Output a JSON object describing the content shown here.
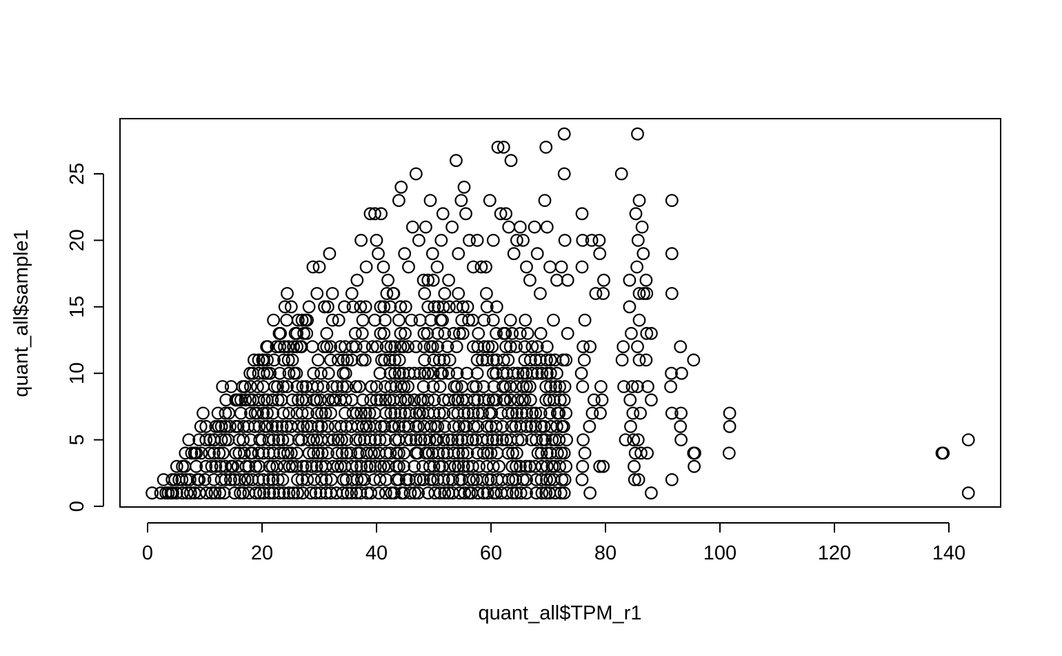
{
  "chart_data": {
    "type": "scatter",
    "title": "",
    "xlabel": "quant_all$TPM_r1",
    "ylabel": "quant_all$sample1",
    "xlim": [
      -4,
      150
    ],
    "ylim": [
      0,
      28
    ],
    "xticks": [
      0,
      20,
      40,
      60,
      80,
      100,
      120,
      140
    ],
    "yticks": [
      0,
      5,
      10,
      15,
      20,
      25
    ],
    "grid": false,
    "legend": "none",
    "point_color": "#000000",
    "series": [
      {
        "points": [
          [
            0.8,
            1
          ],
          [
            2.3,
            1
          ],
          [
            2.8,
            2
          ],
          [
            3.6,
            1
          ],
          [
            4.3,
            2
          ],
          [
            4.1,
            1
          ],
          [
            5.1,
            3
          ],
          [
            5.5,
            2
          ],
          [
            6.1,
            3
          ],
          [
            6.6,
            4
          ],
          [
            7.2,
            5
          ],
          [
            7.7,
            4
          ],
          [
            8.2,
            4
          ],
          [
            9.0,
            5
          ],
          [
            9.3,
            6
          ],
          [
            9.7,
            7
          ],
          [
            10.2,
            6
          ],
          [
            10.9,
            5
          ],
          [
            11.6,
            5
          ],
          [
            12.3,
            7
          ],
          [
            12.9,
            6
          ],
          [
            13.1,
            9
          ],
          [
            13.7,
            8
          ],
          [
            14.6,
            9
          ],
          [
            15.5,
            8
          ],
          [
            16.3,
            8
          ],
          [
            17.0,
            9
          ],
          [
            17.9,
            10
          ],
          [
            18.6,
            11
          ],
          [
            19.4,
            11
          ],
          [
            20.1,
            11
          ],
          [
            20.8,
            12
          ],
          [
            21.4,
            10
          ],
          [
            22.0,
            14
          ],
          [
            22.5,
            12
          ],
          [
            23.2,
            13
          ],
          [
            24.0,
            15
          ],
          [
            24.4,
            16
          ],
          [
            25.1,
            15
          ],
          [
            25.8,
            13
          ],
          [
            26.7,
            12
          ],
          [
            27.6,
            14
          ],
          [
            28.2,
            15
          ],
          [
            28.9,
            18
          ],
          [
            29.6,
            16
          ],
          [
            30.0,
            18
          ],
          [
            30.9,
            15
          ],
          [
            31.8,
            19
          ],
          [
            32.3,
            16
          ],
          [
            33.4,
            14
          ],
          [
            34.4,
            15
          ],
          [
            35.7,
            16
          ],
          [
            36.6,
            17
          ],
          [
            37.3,
            20
          ],
          [
            38.2,
            18
          ],
          [
            38.9,
            22
          ],
          [
            39.7,
            22
          ],
          [
            40.0,
            20
          ],
          [
            40.3,
            19
          ],
          [
            40.8,
            22
          ],
          [
            41.2,
            18
          ],
          [
            42.0,
            17
          ],
          [
            42.9,
            16
          ],
          [
            43.9,
            23
          ],
          [
            44.3,
            24
          ],
          [
            44.9,
            19
          ],
          [
            45.6,
            18
          ],
          [
            46.3,
            21
          ],
          [
            46.9,
            25
          ],
          [
            47.4,
            20
          ],
          [
            48.2,
            17
          ],
          [
            48.6,
            21
          ],
          [
            49.4,
            23
          ],
          [
            49.8,
            19
          ],
          [
            50.6,
            18
          ],
          [
            51.6,
            22
          ],
          [
            51.3,
            20
          ],
          [
            52.6,
            17
          ],
          [
            53.2,
            21
          ],
          [
            53.9,
            26
          ],
          [
            54.3,
            19
          ],
          [
            54.8,
            23
          ],
          [
            55.3,
            24
          ],
          [
            55.6,
            22
          ],
          [
            56.2,
            20
          ],
          [
            56.9,
            18
          ],
          [
            57.6,
            20
          ],
          [
            58.3,
            18
          ],
          [
            59.1,
            18
          ],
          [
            59.8,
            23
          ],
          [
            60.4,
            20
          ],
          [
            61.2,
            27
          ],
          [
            61.7,
            22
          ],
          [
            62.2,
            27
          ],
          [
            62.6,
            22
          ],
          [
            63.1,
            21
          ],
          [
            63.5,
            26
          ],
          [
            64.0,
            19
          ],
          [
            64.5,
            20
          ],
          [
            65.1,
            21
          ],
          [
            65.6,
            20
          ],
          [
            66.2,
            18
          ],
          [
            66.8,
            17
          ],
          [
            67.6,
            21
          ],
          [
            68.1,
            19
          ],
          [
            68.6,
            16
          ],
          [
            69.4,
            23
          ],
          [
            69.6,
            27
          ],
          [
            69.8,
            21
          ],
          [
            70.3,
            18
          ],
          [
            70.9,
            14
          ],
          [
            71.5,
            17
          ],
          [
            72.3,
            18
          ],
          [
            72.8,
            28
          ],
          [
            72.8,
            25
          ],
          [
            72.9,
            20
          ],
          [
            73.4,
            17
          ],
          [
            73.4,
            13
          ],
          [
            72.6,
            11
          ],
          [
            75.9,
            22
          ],
          [
            76.0,
            20
          ],
          [
            75.9,
            18
          ],
          [
            76.4,
            14
          ],
          [
            76.1,
            12
          ],
          [
            76.3,
            11
          ],
          [
            75.8,
            10
          ],
          [
            76.0,
            9
          ],
          [
            77.3,
            12
          ],
          [
            77.6,
            20
          ],
          [
            78.3,
            16
          ],
          [
            78.9,
            20
          ],
          [
            79.0,
            19
          ],
          [
            79.7,
            17
          ],
          [
            79.6,
            16
          ],
          [
            79.2,
            9
          ],
          [
            79.4,
            8
          ],
          [
            79.1,
            7
          ],
          [
            78.0,
            8
          ],
          [
            77.7,
            7
          ],
          [
            77.2,
            6
          ],
          [
            76.1,
            5
          ],
          [
            76.4,
            4
          ],
          [
            76.0,
            3
          ],
          [
            75.9,
            2
          ],
          [
            77.3,
            1
          ],
          [
            79.0,
            3
          ],
          [
            79.6,
            3
          ],
          [
            82.8,
            25
          ],
          [
            83.1,
            12
          ],
          [
            82.9,
            11
          ],
          [
            83.2,
            9
          ],
          [
            83.5,
            5
          ],
          [
            84.2,
            17
          ],
          [
            84.2,
            15
          ],
          [
            84.5,
            13
          ],
          [
            84.7,
            9
          ],
          [
            84.3,
            8
          ],
          [
            84.8,
            7
          ],
          [
            84.4,
            6
          ],
          [
            84.9,
            5
          ],
          [
            85.2,
            4
          ],
          [
            85.0,
            3
          ],
          [
            85.1,
            2
          ],
          [
            85.3,
            22
          ],
          [
            85.6,
            28
          ],
          [
            85.9,
            23
          ],
          [
            85.7,
            20
          ],
          [
            85.5,
            18
          ],
          [
            85.9,
            16
          ],
          [
            85.9,
            14
          ],
          [
            85.6,
            12
          ],
          [
            85.9,
            11
          ],
          [
            85.6,
            9
          ],
          [
            86.1,
            7
          ],
          [
            85.7,
            5
          ],
          [
            86.2,
            4
          ],
          [
            85.8,
            2
          ],
          [
            86.4,
            21
          ],
          [
            86.6,
            19
          ],
          [
            86.7,
            16
          ],
          [
            87.1,
            17
          ],
          [
            87.2,
            16
          ],
          [
            87.2,
            13
          ],
          [
            87.1,
            11
          ],
          [
            87.4,
            9
          ],
          [
            87.3,
            4
          ],
          [
            88.0,
            13
          ],
          [
            88.0,
            8
          ],
          [
            88.0,
            1
          ],
          [
            91.6,
            23
          ],
          [
            91.6,
            19
          ],
          [
            91.6,
            16
          ],
          [
            91.5,
            10
          ],
          [
            91.4,
            9
          ],
          [
            91.6,
            7
          ],
          [
            91.6,
            2
          ],
          [
            93.1,
            12
          ],
          [
            93.3,
            10
          ],
          [
            93.2,
            7
          ],
          [
            93.1,
            6
          ],
          [
            93.2,
            5
          ],
          [
            95.4,
            11
          ],
          [
            95.4,
            4
          ],
          [
            95.6,
            4
          ],
          [
            95.5,
            3
          ],
          [
            101.7,
            7
          ],
          [
            101.7,
            6
          ],
          [
            101.6,
            4
          ],
          [
            138.8,
            4
          ],
          [
            139.0,
            4
          ],
          [
            143.4,
            5
          ],
          [
            143.4,
            1
          ]
        ]
      }
    ]
  }
}
